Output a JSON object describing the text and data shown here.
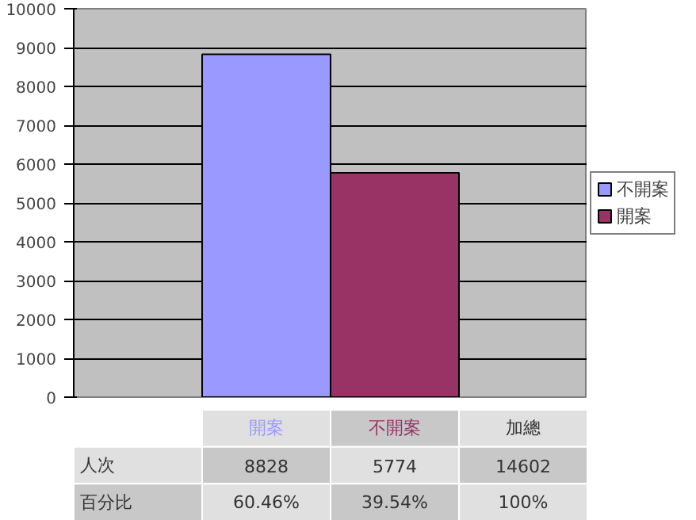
{
  "chart_data": {
    "type": "bar",
    "categories": [
      null
    ],
    "series": [
      {
        "name": "不開案",
        "color": "#9999ff",
        "values": [
          8828
        ]
      },
      {
        "name": "開案",
        "color": "#993366",
        "values": [
          5774
        ]
      }
    ],
    "ylim": [
      0,
      10000
    ],
    "yticks": [
      0,
      1000,
      2000,
      3000,
      4000,
      5000,
      6000,
      7000,
      8000,
      9000,
      10000
    ],
    "grid": "y",
    "legend": "right",
    "annotations": [
      "開案",
      "不開案",
      "加總",
      "人次",
      "8828",
      "5774",
      "14602",
      "百分比",
      "60.46%",
      "39.54%",
      "100%"
    ]
  }
}
